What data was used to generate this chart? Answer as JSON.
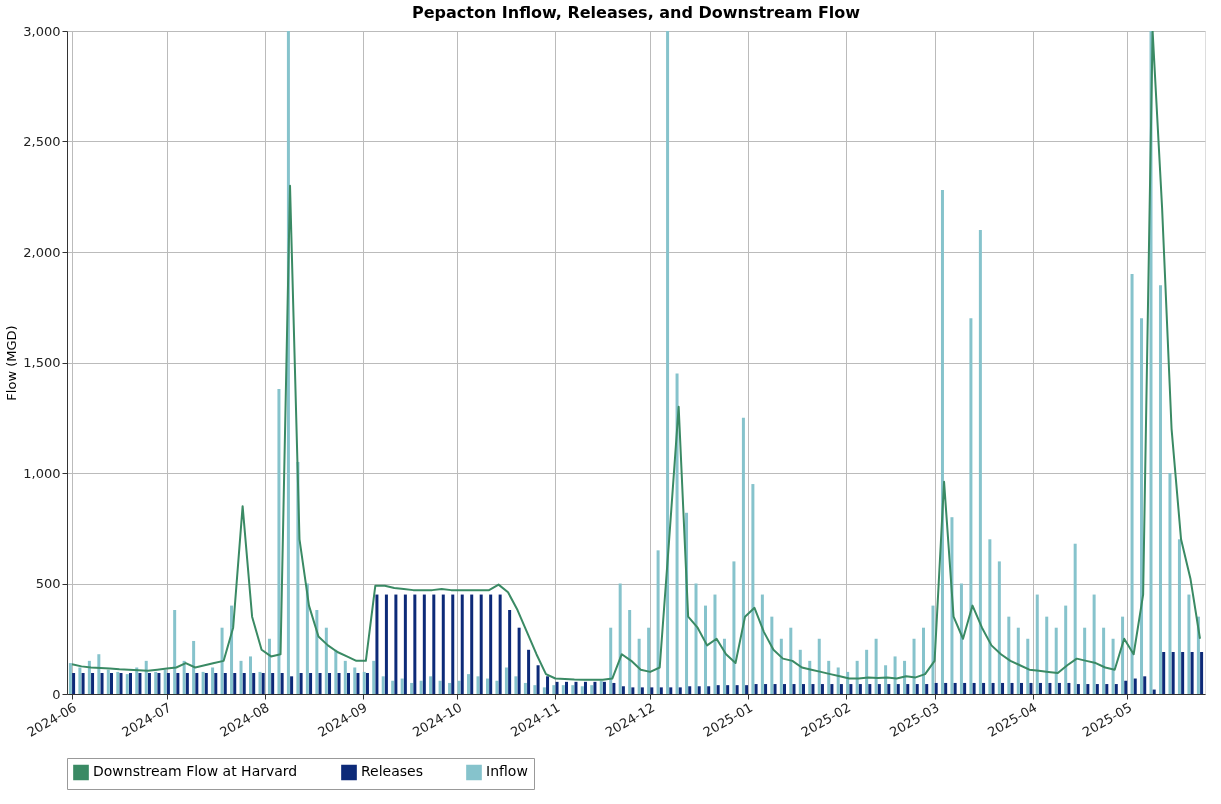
{
  "chart_data": {
    "type": "bar",
    "title": "Pepacton Inflow, Releases, and Downstream Flow",
    "ylabel": "Flow (MGD)",
    "x": [
      "2024-06-01",
      "2024-06-04",
      "2024-06-07",
      "2024-06-10",
      "2024-06-13",
      "2024-06-16",
      "2024-06-19",
      "2024-06-22",
      "2024-06-25",
      "2024-06-28",
      "2024-07-01",
      "2024-07-04",
      "2024-07-07",
      "2024-07-10",
      "2024-07-13",
      "2024-07-16",
      "2024-07-19",
      "2024-07-22",
      "2024-07-25",
      "2024-07-28",
      "2024-07-31",
      "2024-08-03",
      "2024-08-06",
      "2024-08-09",
      "2024-08-12",
      "2024-08-15",
      "2024-08-18",
      "2024-08-21",
      "2024-08-24",
      "2024-08-27",
      "2024-08-30",
      "2024-09-02",
      "2024-09-05",
      "2024-09-08",
      "2024-09-11",
      "2024-09-14",
      "2024-09-17",
      "2024-09-20",
      "2024-09-23",
      "2024-09-26",
      "2024-09-29",
      "2024-10-02",
      "2024-10-05",
      "2024-10-08",
      "2024-10-11",
      "2024-10-14",
      "2024-10-17",
      "2024-10-20",
      "2024-10-23",
      "2024-10-26",
      "2024-10-29",
      "2024-11-01",
      "2024-11-04",
      "2024-11-07",
      "2024-11-10",
      "2024-11-13",
      "2024-11-16",
      "2024-11-19",
      "2024-11-22",
      "2024-11-25",
      "2024-11-28",
      "2024-12-01",
      "2024-12-04",
      "2024-12-07",
      "2024-12-10",
      "2024-12-13",
      "2024-12-16",
      "2024-12-19",
      "2024-12-22",
      "2024-12-25",
      "2024-12-28",
      "2024-12-31",
      "2025-01-03",
      "2025-01-06",
      "2025-01-09",
      "2025-01-12",
      "2025-01-15",
      "2025-01-18",
      "2025-01-21",
      "2025-01-24",
      "2025-01-27",
      "2025-01-30",
      "2025-02-02",
      "2025-02-05",
      "2025-02-08",
      "2025-02-11",
      "2025-02-14",
      "2025-02-17",
      "2025-02-20",
      "2025-02-23",
      "2025-02-26",
      "2025-03-01",
      "2025-03-04",
      "2025-03-07",
      "2025-03-10",
      "2025-03-13",
      "2025-03-16",
      "2025-03-19",
      "2025-03-22",
      "2025-03-25",
      "2025-03-28",
      "2025-03-31",
      "2025-04-03",
      "2025-04-06",
      "2025-04-09",
      "2025-04-12",
      "2025-04-15",
      "2025-04-18",
      "2025-04-21",
      "2025-04-24",
      "2025-04-27",
      "2025-04-30",
      "2025-05-03",
      "2025-05-06",
      "2025-05-09",
      "2025-05-12",
      "2025-05-15",
      "2025-05-18",
      "2025-05-21",
      "2025-05-24"
    ],
    "series": [
      {
        "name": "Inflow",
        "color": "#86c3cc",
        "values": [
          140,
          120,
          150,
          180,
          110,
          100,
          90,
          120,
          150,
          100,
          110,
          380,
          150,
          240,
          100,
          120,
          300,
          400,
          150,
          170,
          100,
          250,
          1380,
          3000,
          1050,
          500,
          380,
          300,
          200,
          150,
          120,
          100,
          150,
          80,
          60,
          70,
          50,
          60,
          80,
          60,
          50,
          60,
          90,
          80,
          70,
          60,
          120,
          80,
          50,
          40,
          30,
          40,
          40,
          40,
          35,
          40,
          60,
          300,
          500,
          380,
          250,
          300,
          650,
          3000,
          1450,
          820,
          500,
          400,
          450,
          250,
          600,
          1250,
          950,
          450,
          350,
          250,
          300,
          200,
          150,
          250,
          150,
          120,
          100,
          150,
          200,
          250,
          130,
          170,
          150,
          250,
          300,
          400,
          2280,
          800,
          500,
          1700,
          2100,
          700,
          600,
          350,
          300,
          250,
          450,
          350,
          300,
          400,
          680,
          300,
          450,
          300,
          250,
          350,
          1900,
          1700,
          3000,
          1850,
          1000,
          700,
          450,
          350
        ]
      },
      {
        "name": "Releases",
        "color": "#0d2a78",
        "values": [
          95,
          95,
          95,
          95,
          95,
          95,
          95,
          95,
          95,
          95,
          95,
          95,
          95,
          95,
          95,
          95,
          95,
          95,
          95,
          95,
          95,
          95,
          95,
          80,
          95,
          95,
          95,
          95,
          95,
          95,
          95,
          95,
          450,
          450,
          450,
          450,
          450,
          450,
          450,
          450,
          450,
          450,
          450,
          450,
          450,
          450,
          380,
          300,
          200,
          130,
          80,
          55,
          55,
          55,
          55,
          55,
          55,
          50,
          35,
          30,
          30,
          30,
          30,
          30,
          30,
          35,
          35,
          35,
          40,
          40,
          40,
          40,
          45,
          45,
          45,
          45,
          45,
          45,
          45,
          45,
          45,
          45,
          45,
          45,
          45,
          45,
          45,
          45,
          45,
          45,
          45,
          50,
          50,
          50,
          50,
          50,
          50,
          50,
          50,
          50,
          50,
          50,
          50,
          50,
          50,
          50,
          45,
          45,
          45,
          45,
          45,
          60,
          70,
          80,
          20,
          190,
          190,
          190,
          190,
          190
        ]
      },
      {
        "name": "Downstream Flow at Harvard",
        "type": "line",
        "color": "#3a8a64",
        "values": [
          135,
          125,
          120,
          118,
          115,
          112,
          110,
          108,
          105,
          110,
          115,
          120,
          140,
          120,
          130,
          140,
          150,
          300,
          850,
          350,
          200,
          170,
          180,
          2300,
          700,
          400,
          260,
          220,
          190,
          170,
          150,
          150,
          490,
          490,
          480,
          475,
          470,
          470,
          470,
          475,
          470,
          470,
          470,
          470,
          470,
          495,
          460,
          380,
          280,
          180,
          90,
          70,
          68,
          66,
          65,
          65,
          65,
          70,
          180,
          150,
          110,
          100,
          120,
          700,
          1300,
          350,
          300,
          220,
          250,
          180,
          140,
          350,
          390,
          280,
          200,
          160,
          150,
          120,
          110,
          100,
          90,
          80,
          70,
          70,
          75,
          72,
          75,
          70,
          80,
          75,
          90,
          150,
          960,
          350,
          250,
          400,
          300,
          220,
          180,
          150,
          130,
          110,
          105,
          100,
          95,
          130,
          160,
          150,
          140,
          120,
          110,
          250,
          180,
          450,
          3000,
          2200,
          1200,
          700,
          520,
          250
        ]
      }
    ],
    "xlim": [
      "2024-06-01",
      "2025-05-24"
    ],
    "xticks": [
      "2024-06",
      "2024-07",
      "2024-08",
      "2024-09",
      "2024-10",
      "2024-11",
      "2024-12",
      "2025-01",
      "2025-02",
      "2025-03",
      "2025-04",
      "2025-05"
    ],
    "ylim": [
      0,
      3000
    ],
    "yticks": [
      0,
      500,
      {
        "value": 1000,
        "label": "1,000"
      },
      {
        "value": 1500,
        "label": "1,500"
      },
      {
        "value": 2000,
        "label": "2,000"
      },
      {
        "value": 2500,
        "label": "2,500"
      },
      {
        "value": 3000,
        "label": "3,000"
      }
    ],
    "grid": true,
    "legend": "bottom",
    "marker": "none",
    "line_style": "solid"
  }
}
